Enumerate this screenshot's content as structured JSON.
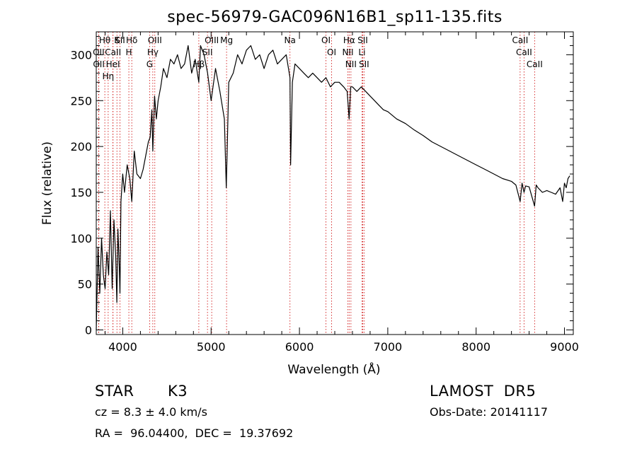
{
  "chart_data": {
    "type": "line",
    "title": "spec-56979-GAC096N16B1_sp11-135.fits",
    "xlabel": "Wavelength (Å)",
    "ylabel": "Flux (relative)",
    "xlim": [
      3700,
      9100
    ],
    "ylim": [
      -5,
      325
    ],
    "xticks": [
      4000,
      5000,
      6000,
      7000,
      8000,
      9000
    ],
    "yticks": [
      0,
      50,
      100,
      150,
      200,
      250,
      300
    ],
    "grid": false,
    "legend": "none",
    "series": [
      {
        "x": [
          3700,
          3720,
          3740,
          3760,
          3780,
          3800,
          3820,
          3840,
          3860,
          3880,
          3900,
          3920,
          3933,
          3945,
          3960,
          3968,
          3980,
          4000,
          4020,
          4050,
          4080,
          4102,
          4130,
          4160,
          4200,
          4230,
          4260,
          4290,
          4310,
          4330,
          4340,
          4360,
          4380,
          4400,
          4430,
          4460,
          4500,
          4540,
          4580,
          4620,
          4660,
          4700,
          4740,
          4780,
          4820,
          4861,
          4880,
          4920,
          4960,
          5000,
          5050,
          5100,
          5150,
          5172,
          5183,
          5200,
          5250,
          5300,
          5350,
          5400,
          5450,
          5500,
          5550,
          5600,
          5650,
          5700,
          5750,
          5800,
          5850,
          5893,
          5900,
          5920,
          5950,
          6000,
          6050,
          6100,
          6150,
          6200,
          6250,
          6300,
          6350,
          6400,
          6450,
          6500,
          6540,
          6563,
          6580,
          6600,
          6650,
          6700,
          6750,
          6800,
          6850,
          6900,
          6950,
          7000,
          7100,
          7200,
          7300,
          7400,
          7500,
          7600,
          7700,
          7800,
          7900,
          8000,
          8100,
          8200,
          8300,
          8400,
          8450,
          8498,
          8520,
          8542,
          8560,
          8600,
          8662,
          8680,
          8700,
          8750,
          8800,
          8850,
          8900,
          8950,
          8980,
          9000,
          9020,
          9040,
          9060
        ],
        "y": [
          0,
          90,
          40,
          100,
          60,
          45,
          85,
          60,
          130,
          45,
          120,
          80,
          30,
          110,
          70,
          40,
          140,
          170,
          150,
          180,
          165,
          140,
          195,
          170,
          165,
          175,
          190,
          205,
          210,
          240,
          195,
          255,
          230,
          250,
          265,
          285,
          275,
          295,
          290,
          300,
          285,
          290,
          310,
          280,
          295,
          270,
          310,
          300,
          280,
          250,
          285,
          260,
          230,
          155,
          200,
          270,
          280,
          300,
          290,
          305,
          310,
          295,
          300,
          285,
          300,
          305,
          290,
          295,
          300,
          275,
          180,
          270,
          290,
          285,
          280,
          275,
          280,
          275,
          270,
          275,
          265,
          270,
          270,
          265,
          260,
          230,
          265,
          265,
          260,
          265,
          260,
          255,
          250,
          245,
          240,
          238,
          230,
          225,
          218,
          212,
          205,
          200,
          195,
          190,
          185,
          180,
          175,
          170,
          165,
          162,
          158,
          140,
          160,
          150,
          157,
          156,
          135,
          158,
          155,
          150,
          152,
          150,
          148,
          155,
          140,
          160,
          155,
          165,
          168
        ]
      }
    ],
    "lines": [
      {
        "labels": [
          "Hθ",
          "OII",
          "OII"
        ],
        "x": [
          3797,
          3727,
          3729
        ]
      },
      {
        "labels": [
          "K",
          "CaII",
          "HeI",
          "Hη"
        ],
        "x": [
          3934,
          3890,
          3889,
          3835
        ]
      },
      {
        "labels": [
          "SII",
          "H"
        ],
        "x": [
          3968,
          4069
        ]
      },
      {
        "labels": [
          "Hδ"
        ],
        "x": [
          4102
        ]
      },
      {
        "labels": [
          "OIII",
          "Hγ",
          "G"
        ],
        "x": [
          4363,
          4340,
          4304
        ]
      },
      {
        "labels": [
          "OIII",
          "SII",
          "Hβ"
        ],
        "x": [
          5007,
          4959,
          4861
        ]
      },
      {
        "labels": [
          "Mg"
        ],
        "x": [
          5175
        ]
      },
      {
        "labels": [
          "Na"
        ],
        "x": [
          5893
        ]
      },
      {
        "labels": [
          "OI",
          "OI"
        ],
        "x": [
          6300,
          6364
        ]
      },
      {
        "labels": [
          "Hα",
          "NII",
          "NII"
        ],
        "x": [
          6563,
          6548,
          6583
        ]
      },
      {
        "labels": [
          "SII",
          "Li",
          "SII"
        ],
        "x": [
          6716,
          6708,
          6731
        ]
      },
      {
        "labels": [
          "CaII",
          "CaII",
          "CaII"
        ],
        "x": [
          8498,
          8542,
          8662
        ]
      }
    ]
  },
  "info": {
    "object_class": "STAR",
    "subclass": "K3",
    "survey": "LAMOST  DR5",
    "velocity": "cz = 8.3 ± 4.0 km/s",
    "obs_date": "Obs-Date: 20141117",
    "coords": "RA =  96.04400,  DEC =  19.37692"
  }
}
